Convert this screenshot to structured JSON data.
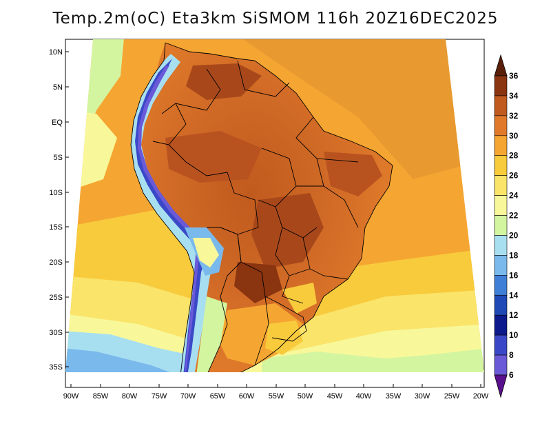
{
  "title": "Temp.2m(oC) Eta3km SiSMOM 116h 20Z16DEC2025",
  "map": {
    "variable": "2 m temperature",
    "units": "oC",
    "lat_axis_labels": [
      "10N",
      "5N",
      "EQ",
      "5S",
      "10S",
      "15S",
      "20S",
      "25S",
      "30S",
      "35S"
    ],
    "lon_axis_labels": [
      "90W",
      "85W",
      "80W",
      "75W",
      "70W",
      "65W",
      "60W",
      "55W",
      "50W",
      "45W",
      "40W",
      "35W",
      "30W",
      "25W",
      "20W"
    ]
  },
  "colorbar": {
    "labels": [
      "36",
      "34",
      "32",
      "30",
      "28",
      "26",
      "24",
      "22",
      "20",
      "18",
      "16",
      "14",
      "12",
      "10",
      "8",
      "6"
    ],
    "colors": [
      "#5a1f08",
      "#8a3410",
      "#c05a1e",
      "#e07a2a",
      "#f5a632",
      "#f8cb3d",
      "#fae46a",
      "#f8f89a",
      "#d4f5a0",
      "#a8dff0",
      "#7ab9ec",
      "#3f7fd6",
      "#1f49b4",
      "#0d1a8c",
      "#3a48c8",
      "#6a5ad8",
      "#8a3fb8",
      "#5a0f8c"
    ]
  }
}
